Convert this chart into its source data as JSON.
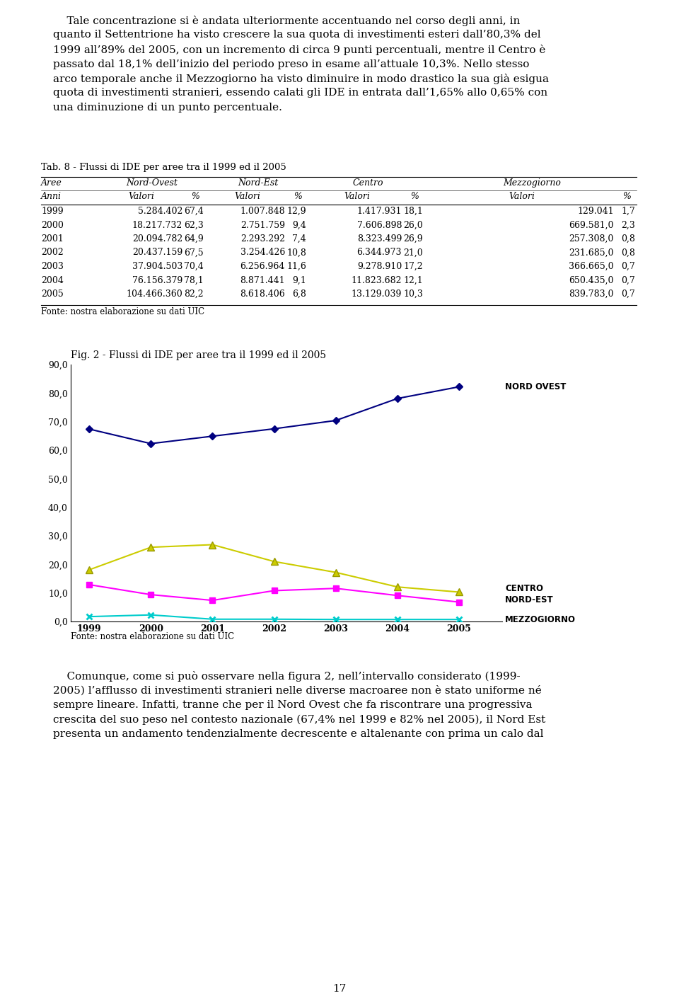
{
  "page_text_top_lines": [
    "    Tale concentrazione si è andata ulteriormente accentuando nel corso degli anni, in",
    "quanto il Settentrione ha visto crescere la sua quota di investimenti esteri dall’80,3% del",
    "1999 all’89% del 2005, con un incremento di circa 9 punti percentuali, mentre il Centro è",
    "passato dal 18,1% dell’inizio del periodo preso in esame all’attuale 10,3%. Nello stesso",
    "arco temporale anche il Mezzogiorno ha visto diminuire in modo drastico la sua già esigua",
    "quota di investimenti stranieri, essendo calati gli IDE in entrata dall’1,65% allo 0,65% con",
    "una diminuzione di un punto percentuale."
  ],
  "table_title": "Tab. 8 - Flussi di IDE per aree tra il 1999 ed il 2005",
  "table_data": [
    [
      "1999",
      "5.284.402",
      "67,4",
      "1.007.848",
      "12,9",
      "1.417.931",
      "18,1",
      "129.041",
      "1,7"
    ],
    [
      "2000",
      "18.217.732",
      "62,3",
      "2.751.759",
      "9,4",
      "7.606.898",
      "26,0",
      "669.581,0",
      "2,3"
    ],
    [
      "2001",
      "20.094.782",
      "64,9",
      "2.293.292",
      "7,4",
      "8.323.499",
      "26,9",
      "257.308,0",
      "0,8"
    ],
    [
      "2002",
      "20.437.159",
      "67,5",
      "3.254.426",
      "10,8",
      "6.344.973",
      "21,0",
      "231.685,0",
      "0,8"
    ],
    [
      "2003",
      "37.904.503",
      "70,4",
      "6.256.964",
      "11,6",
      "9.278.910",
      "17,2",
      "366.665,0",
      "0,7"
    ],
    [
      "2004",
      "76.156.379",
      "78,1",
      "8.871.441",
      "9,1",
      "11.823.682",
      "12,1",
      "650.435,0",
      "0,7"
    ],
    [
      "2005",
      "104.466.360",
      "82,2",
      "8.618.406",
      "6,8",
      "13.129.039",
      "10,3",
      "839.783,0",
      "0,7"
    ]
  ],
  "table_footer": "Fonte: nostra elaborazione su dati UIC",
  "chart_title": "Fig. 2 - Flussi di IDE per aree tra il 1999 ed il 2005",
  "chart_footer": "Fonte: nostra elaborazione su dati UIC",
  "years": [
    1999,
    2000,
    2001,
    2002,
    2003,
    2004,
    2005
  ],
  "nord_ovest": [
    67.4,
    62.3,
    64.9,
    67.5,
    70.4,
    78.1,
    82.2
  ],
  "nord_est": [
    12.9,
    9.4,
    7.4,
    10.8,
    11.6,
    9.1,
    6.8
  ],
  "centro": [
    18.1,
    26.0,
    26.9,
    21.0,
    17.2,
    12.1,
    10.3
  ],
  "mezzogiorno": [
    1.7,
    2.3,
    0.8,
    0.8,
    0.7,
    0.7,
    0.7
  ],
  "nord_ovest_color": "#000080",
  "nord_est_color": "#FF00FF",
  "centro_color": "#CCCC00",
  "mezzogiorno_color": "#00CCCC",
  "ylim": [
    0.0,
    90.0
  ],
  "yticks": [
    0.0,
    10.0,
    20.0,
    30.0,
    40.0,
    50.0,
    60.0,
    70.0,
    80.0,
    90.0
  ],
  "page_text_bottom_lines": [
    "    Comunque, come si può osservare nella figura 2, nell’intervallo considerato (1999-",
    "2005) l’afflusso di investimenti stranieri nelle diverse macroaree non è stato uniforme né",
    "sempre lineare. Infatti, tranne che per il Nord Ovest che fa riscontrare una progressiva",
    "crescita del suo peso nel contesto nazionale (67,4% nel 1999 e 82% nel 2005), il Nord Est",
    "presenta un andamento tendenzialmente decrescente e altalenante con prima un calo dal"
  ],
  "page_number": "17",
  "background_color": "#ffffff",
  "text_color": "#000000"
}
